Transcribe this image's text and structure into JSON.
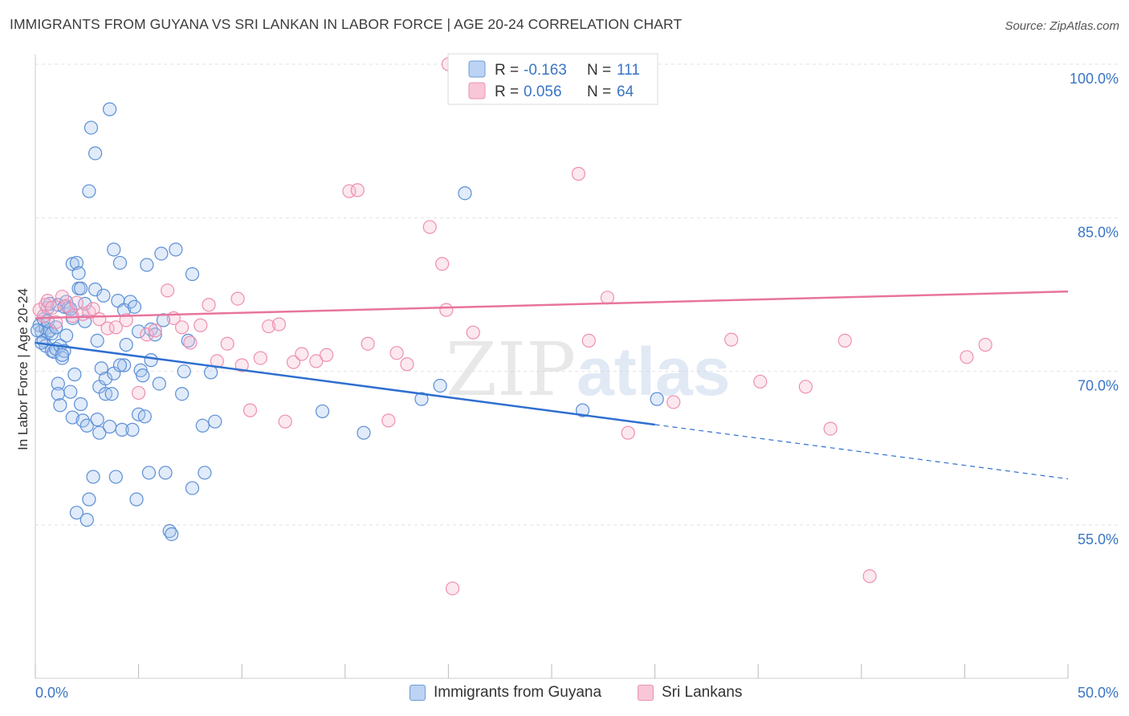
{
  "title": "IMMIGRANTS FROM GUYANA VS SRI LANKAN IN LABOR FORCE | AGE 20-24 CORRELATION CHART",
  "source": "Source: ZipAtlas.com",
  "watermark": {
    "zip": "ZIP",
    "atlas": "atlas"
  },
  "colors": {
    "blue": "#5b8fd6",
    "blue_line": "#2f6fd0",
    "pink": "#ee8fb0",
    "pink_line": "#e8749e",
    "grid": "#e2e2e2",
    "axis_label": "#3a75c4"
  },
  "legend": {
    "rows": [
      {
        "r_label": "R =",
        "r_value": "-0.163",
        "n_label": "N =",
        "n_value": "111"
      },
      {
        "r_label": "R =",
        "r_value": "0.056",
        "n_label": "N =",
        "n_value": "64"
      }
    ]
  },
  "bottom_legend": [
    {
      "label": "Immigrants from Guyana"
    },
    {
      "label": "Sri Lankans"
    }
  ],
  "chart_data": {
    "type": "scatter",
    "title": "IMMIGRANTS FROM GUYANA VS SRI LANKAN IN LABOR FORCE | AGE 20-24 CORRELATION CHART",
    "xlabel": "",
    "ylabel": "In Labor Force | Age 20-24",
    "xlim": [
      0,
      50
    ],
    "ylim": [
      40,
      102
    ],
    "x_tick_labels": [
      "0.0%",
      "50.0%"
    ],
    "y_ticks": [
      55,
      70,
      85,
      100
    ],
    "y_tick_labels": [
      "55.0%",
      "70.0%",
      "85.0%",
      "100.0%"
    ],
    "series": [
      {
        "name": "Immigrants from Guyana",
        "color": "#5b8fd6",
        "points": [
          [
            0.2,
            74.5
          ],
          [
            0.3,
            73.9
          ],
          [
            0.4,
            73.0
          ],
          [
            0.4,
            75.1
          ],
          [
            0.5,
            74.2
          ],
          [
            0.5,
            72.5
          ],
          [
            0.6,
            73.8
          ],
          [
            0.6,
            76.2
          ],
          [
            0.7,
            74.0
          ],
          [
            0.7,
            76.6
          ],
          [
            0.8,
            72.0
          ],
          [
            0.8,
            73.7
          ],
          [
            0.9,
            71.9
          ],
          [
            1.0,
            72.2
          ],
          [
            1.1,
            76.5
          ],
          [
            1.1,
            68.8
          ],
          [
            1.1,
            67.8
          ],
          [
            1.2,
            72.5
          ],
          [
            1.2,
            66.7
          ],
          [
            1.3,
            71.3
          ],
          [
            1.4,
            72.0
          ],
          [
            1.4,
            76.3
          ],
          [
            1.5,
            76.8
          ],
          [
            1.5,
            73.5
          ],
          [
            1.6,
            76.2
          ],
          [
            1.7,
            68.0
          ],
          [
            1.8,
            75.2
          ],
          [
            1.8,
            65.5
          ],
          [
            1.8,
            80.5
          ],
          [
            1.9,
            69.7
          ],
          [
            2.0,
            80.6
          ],
          [
            2.0,
            56.2
          ],
          [
            2.1,
            79.6
          ],
          [
            2.1,
            78.1
          ],
          [
            2.2,
            66.8
          ],
          [
            2.3,
            65.2
          ],
          [
            2.4,
            76.6
          ],
          [
            2.4,
            74.9
          ],
          [
            2.5,
            64.7
          ],
          [
            2.5,
            55.5
          ],
          [
            2.6,
            87.6
          ],
          [
            2.6,
            57.5
          ],
          [
            2.7,
            93.8
          ],
          [
            2.8,
            59.7
          ],
          [
            2.9,
            91.3
          ],
          [
            2.9,
            78.0
          ],
          [
            3.0,
            65.3
          ],
          [
            3.1,
            68.5
          ],
          [
            3.1,
            64.0
          ],
          [
            3.2,
            70.3
          ],
          [
            3.3,
            77.4
          ],
          [
            3.4,
            67.8
          ],
          [
            3.4,
            69.3
          ],
          [
            3.6,
            95.6
          ],
          [
            3.6,
            64.6
          ],
          [
            3.7,
            67.8
          ],
          [
            3.8,
            69.8
          ],
          [
            3.8,
            81.9
          ],
          [
            3.9,
            59.7
          ],
          [
            4.0,
            76.9
          ],
          [
            4.1,
            80.6
          ],
          [
            4.2,
            64.3
          ],
          [
            4.3,
            76.0
          ],
          [
            4.3,
            70.6
          ],
          [
            4.4,
            72.6
          ],
          [
            4.6,
            76.8
          ],
          [
            4.7,
            64.3
          ],
          [
            4.8,
            76.3
          ],
          [
            4.9,
            57.5
          ],
          [
            5.0,
            65.8
          ],
          [
            5.1,
            70.1
          ],
          [
            5.3,
            65.6
          ],
          [
            5.4,
            80.4
          ],
          [
            5.5,
            60.1
          ],
          [
            5.6,
            74.1
          ],
          [
            5.6,
            71.1
          ],
          [
            5.8,
            73.6
          ],
          [
            6.1,
            81.5
          ],
          [
            6.2,
            75.0
          ],
          [
            6.3,
            60.1
          ],
          [
            6.5,
            54.4
          ],
          [
            6.6,
            54.1
          ],
          [
            6.8,
            81.9
          ],
          [
            7.1,
            67.8
          ],
          [
            7.2,
            70.0
          ],
          [
            7.6,
            79.5
          ],
          [
            7.6,
            58.6
          ],
          [
            8.1,
            64.7
          ],
          [
            8.2,
            60.1
          ],
          [
            8.5,
            69.9
          ],
          [
            8.7,
            65.1
          ],
          [
            13.9,
            66.1
          ],
          [
            15.9,
            64.0
          ],
          [
            18.7,
            67.3
          ],
          [
            19.6,
            68.6
          ],
          [
            20.8,
            87.4
          ],
          [
            26.5,
            66.2
          ],
          [
            30.1,
            67.3
          ],
          [
            0.1,
            74.0
          ],
          [
            0.3,
            72.8
          ],
          [
            0.6,
            74.9
          ],
          [
            1.0,
            74.3
          ],
          [
            1.3,
            71.6
          ],
          [
            1.7,
            76.1
          ],
          [
            2.2,
            78.1
          ],
          [
            3.0,
            73.0
          ],
          [
            4.1,
            70.6
          ],
          [
            5.0,
            73.9
          ],
          [
            5.2,
            69.6
          ],
          [
            6.0,
            68.8
          ],
          [
            7.4,
            73.0
          ]
        ]
      },
      {
        "name": "Sri Lankans",
        "color": "#ee8fb0",
        "points": [
          [
            0.2,
            76.0
          ],
          [
            0.4,
            75.4
          ],
          [
            0.5,
            76.5
          ],
          [
            0.6,
            76.9
          ],
          [
            0.8,
            76.2
          ],
          [
            1.0,
            74.8
          ],
          [
            1.3,
            77.3
          ],
          [
            1.5,
            76.4
          ],
          [
            1.8,
            75.4
          ],
          [
            2.0,
            76.7
          ],
          [
            2.3,
            75.6
          ],
          [
            2.6,
            75.8
          ],
          [
            2.8,
            76.1
          ],
          [
            3.1,
            75.1
          ],
          [
            3.5,
            74.2
          ],
          [
            3.9,
            74.3
          ],
          [
            4.4,
            75.0
          ],
          [
            5.0,
            67.9
          ],
          [
            5.4,
            73.6
          ],
          [
            5.8,
            74.0
          ],
          [
            6.4,
            77.9
          ],
          [
            6.7,
            75.2
          ],
          [
            7.1,
            74.3
          ],
          [
            7.5,
            72.8
          ],
          [
            8.0,
            74.5
          ],
          [
            8.4,
            76.5
          ],
          [
            8.8,
            71.0
          ],
          [
            9.3,
            72.7
          ],
          [
            9.8,
            77.1
          ],
          [
            10.0,
            70.6
          ],
          [
            10.4,
            66.2
          ],
          [
            10.9,
            71.3
          ],
          [
            11.3,
            74.4
          ],
          [
            11.8,
            74.6
          ],
          [
            12.1,
            65.1
          ],
          [
            12.5,
            70.9
          ],
          [
            12.9,
            71.7
          ],
          [
            13.6,
            71.0
          ],
          [
            14.1,
            71.6
          ],
          [
            15.2,
            87.6
          ],
          [
            15.6,
            87.7
          ],
          [
            16.1,
            72.7
          ],
          [
            17.1,
            65.2
          ],
          [
            17.5,
            71.8
          ],
          [
            18.0,
            70.7
          ],
          [
            19.1,
            84.1
          ],
          [
            19.7,
            80.5
          ],
          [
            19.9,
            76.0
          ],
          [
            20.2,
            48.8
          ],
          [
            21.2,
            73.8
          ],
          [
            26.3,
            89.3
          ],
          [
            26.8,
            73.0
          ],
          [
            27.7,
            77.2
          ],
          [
            28.7,
            64.0
          ],
          [
            30.9,
            67.0
          ],
          [
            33.7,
            73.1
          ],
          [
            35.1,
            69.0
          ],
          [
            37.3,
            68.5
          ],
          [
            38.5,
            64.4
          ],
          [
            39.2,
            73.0
          ],
          [
            40.4,
            50.0
          ],
          [
            45.1,
            71.4
          ],
          [
            46.0,
            72.6
          ],
          [
            20.0,
            100.0
          ]
        ]
      }
    ],
    "trend_lines": [
      {
        "series": "Immigrants from Guyana",
        "x": [
          0,
          30
        ],
        "y": [
          72.8,
          64.8
        ],
        "dashed_extension_to_x": 50,
        "dashed_end_y": 59.5
      },
      {
        "series": "Sri Lankans",
        "x": [
          0,
          50
        ],
        "y": [
          75.2,
          77.8
        ]
      }
    ]
  }
}
